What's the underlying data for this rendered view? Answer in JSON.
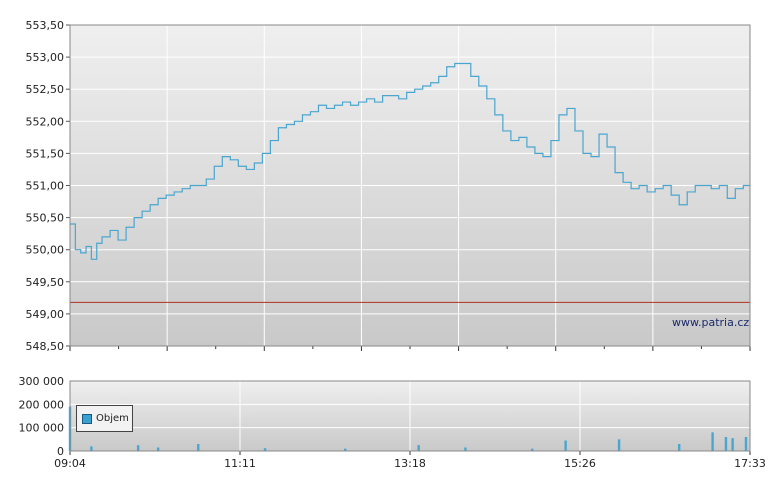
{
  "colors": {
    "price_line": "#4aa6cf",
    "volume_bar": "#4aa6cf",
    "reference_line": "#b03020",
    "grid": "#ffffff",
    "plot_bg_top": "#efefef",
    "plot_bg_bottom": "#c9c9c9"
  },
  "watermark": "www.patria.cz",
  "legend": {
    "icon": "square-swatch",
    "label": "Objem"
  },
  "chart_data": [
    {
      "type": "line",
      "name": "price",
      "title": "",
      "xlabel": "",
      "ylabel": "",
      "ylim": [
        548.5,
        553.5
      ],
      "yticks": [
        "553,50",
        "553,00",
        "552,50",
        "552,00",
        "551,50",
        "551,00",
        "550,50",
        "550,00",
        "549,50",
        "549,00",
        "548,50"
      ],
      "reference_line": 549.18,
      "grid": true,
      "x_time_range": [
        "09:04",
        "17:33"
      ],
      "series": [
        {
          "x": [
            "09:04",
            "09:08",
            "09:12",
            "09:16",
            "09:20",
            "09:24",
            "09:28",
            "09:34",
            "09:40",
            "09:46",
            "09:52",
            "09:58",
            "10:04",
            "10:10",
            "10:16",
            "10:22",
            "10:28",
            "10:34",
            "10:40",
            "10:46",
            "10:52",
            "10:58",
            "11:04",
            "11:10",
            "11:16",
            "11:22",
            "11:28",
            "11:34",
            "11:40",
            "11:46",
            "11:52",
            "11:58",
            "12:04",
            "12:10",
            "12:16",
            "12:22",
            "12:28",
            "12:34",
            "12:40",
            "12:46",
            "12:52",
            "12:58",
            "13:04",
            "13:10",
            "13:16",
            "13:22",
            "13:28",
            "13:34",
            "13:40",
            "13:46",
            "13:52",
            "13:58",
            "14:04",
            "14:10",
            "14:16",
            "14:22",
            "14:28",
            "14:34",
            "14:40",
            "14:46",
            "14:52",
            "14:58",
            "15:04",
            "15:10",
            "15:16",
            "15:22",
            "15:28",
            "15:34",
            "15:40",
            "15:46",
            "15:52",
            "15:58",
            "16:04",
            "16:10",
            "16:16",
            "16:22",
            "16:28",
            "16:34",
            "16:40",
            "16:46",
            "16:52",
            "16:58",
            "17:04",
            "17:10",
            "17:16",
            "17:22",
            "17:28",
            "17:33"
          ],
          "y": [
            550.4,
            550.0,
            549.95,
            550.05,
            549.85,
            550.1,
            550.2,
            550.3,
            550.15,
            550.35,
            550.5,
            550.6,
            550.7,
            550.8,
            550.85,
            550.9,
            550.95,
            551.0,
            551.0,
            551.1,
            551.3,
            551.45,
            551.4,
            551.3,
            551.25,
            551.35,
            551.5,
            551.7,
            551.9,
            551.95,
            552.0,
            552.1,
            552.15,
            552.25,
            552.2,
            552.25,
            552.3,
            552.25,
            552.3,
            552.35,
            552.3,
            552.4,
            552.4,
            552.35,
            552.45,
            552.5,
            552.55,
            552.6,
            552.7,
            552.85,
            552.9,
            552.9,
            552.7,
            552.55,
            552.35,
            552.1,
            551.85,
            551.7,
            551.75,
            551.6,
            551.5,
            551.45,
            551.7,
            552.1,
            552.2,
            551.85,
            551.5,
            551.45,
            551.8,
            551.6,
            551.2,
            551.05,
            550.95,
            551.0,
            550.9,
            550.95,
            551.0,
            550.85,
            550.7,
            550.9,
            551.0,
            551.0,
            550.95,
            551.0,
            550.8,
            550.95,
            551.0,
            551.0
          ]
        }
      ]
    },
    {
      "type": "bar",
      "name": "volume",
      "title": "",
      "xlabel": "",
      "ylabel": "",
      "ylim": [
        0,
        300000
      ],
      "yticks": [
        "300 000",
        "200 000",
        "100 000",
        "0"
      ],
      "xticks": [
        "09:04",
        "11:11",
        "13:18",
        "15:26",
        "17:33"
      ],
      "grid": true,
      "series": [
        {
          "name": "Objem",
          "x": [
            "09:04",
            "09:20",
            "09:55",
            "10:10",
            "10:40",
            "11:30",
            "12:30",
            "13:25",
            "14:00",
            "14:50",
            "15:15",
            "15:55",
            "16:40",
            "17:05",
            "17:15",
            "17:20",
            "17:30"
          ],
          "values": [
            190000,
            20000,
            25000,
            15000,
            30000,
            12000,
            10000,
            25000,
            15000,
            10000,
            45000,
            50000,
            30000,
            80000,
            60000,
            55000,
            60000
          ]
        }
      ]
    }
  ]
}
